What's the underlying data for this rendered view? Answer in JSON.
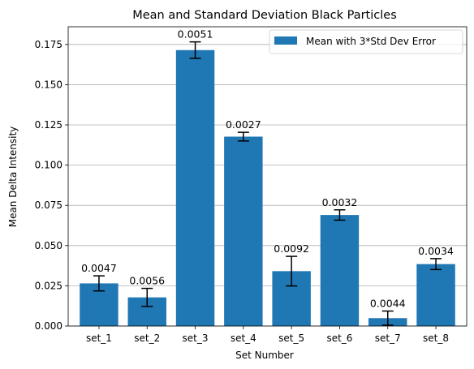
{
  "chart_data": {
    "type": "bar",
    "title": "Mean and Standard Deviation Black Particles",
    "xlabel": "Set Number",
    "ylabel": "Mean Delta Intensity",
    "categories": [
      "set_1",
      "set_2",
      "set_3",
      "set_4",
      "set_5",
      "set_6",
      "set_7",
      "set_8"
    ],
    "values": [
      0.0265,
      0.0178,
      0.1715,
      0.1177,
      0.0341,
      0.069,
      0.0049,
      0.0385
    ],
    "errors": [
      0.0047,
      0.0056,
      0.0051,
      0.0027,
      0.0092,
      0.0032,
      0.0044,
      0.0034
    ],
    "data_labels": [
      "0.0047",
      "0.0056",
      "0.0051",
      "0.0027",
      "0.0092",
      "0.0032",
      "0.0044",
      "0.0034"
    ],
    "ylim": [
      0,
      0.186
    ],
    "yticks": [
      0.0,
      0.025,
      0.05,
      0.075,
      0.1,
      0.125,
      0.15,
      0.175
    ],
    "ytick_labels": [
      "0.000",
      "0.025",
      "0.050",
      "0.075",
      "0.100",
      "0.125",
      "0.150",
      "0.175"
    ],
    "grid": "y",
    "legend": {
      "position": "top-right",
      "entries": [
        "Mean with 3*Std Dev Error"
      ]
    },
    "colors": {
      "bar": "#1f77b4",
      "error": "#000000",
      "grid": "#b0b0b0"
    }
  }
}
